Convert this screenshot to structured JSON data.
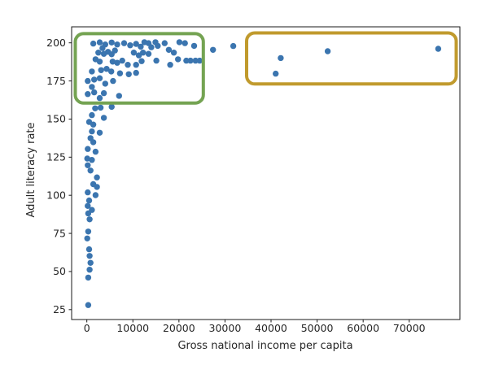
{
  "figure": {
    "background": "#ffffff",
    "frame_color": "#1a1a1a",
    "tick_label_color": "#262626"
  },
  "chart_data": {
    "type": "scatter",
    "title": "",
    "xlabel": "Gross national income per capita",
    "ylabel": "Adult literacy rate",
    "xlim": [
      -3300,
      81000
    ],
    "ylim": [
      18.5,
      210.5
    ],
    "xticks": [
      0,
      10000,
      20000,
      30000,
      40000,
      50000,
      60000,
      70000
    ],
    "yticks": [
      25,
      50,
      75,
      100,
      125,
      150,
      175,
      200
    ],
    "grid": false,
    "legend": null,
    "point_color": "#3b75af",
    "marker_radius": 3.7,
    "points": [
      [
        1400,
        199.5
      ],
      [
        2800,
        200.3
      ],
      [
        4000,
        198.9
      ],
      [
        5400,
        200.2
      ],
      [
        6600,
        198.9
      ],
      [
        8100,
        199.8
      ],
      [
        9400,
        198.4
      ],
      [
        10700,
        199.3
      ],
      [
        11700,
        197.5
      ],
      [
        12500,
        200.4
      ],
      [
        13400,
        199.8
      ],
      [
        14000,
        197.1
      ],
      [
        14900,
        200.4
      ],
      [
        15400,
        198.0
      ],
      [
        16900,
        199.8
      ],
      [
        20100,
        200.4
      ],
      [
        21300,
        199.8
      ],
      [
        23300,
        198.0
      ],
      [
        2500,
        193.6
      ],
      [
        3400,
        196.6
      ],
      [
        3700,
        192.8
      ],
      [
        4600,
        194.1
      ],
      [
        5400,
        192.5
      ],
      [
        6100,
        195.0
      ],
      [
        10200,
        193.6
      ],
      [
        11300,
        191.8
      ],
      [
        12200,
        193.6
      ],
      [
        13400,
        192.8
      ],
      [
        17800,
        195.4
      ],
      [
        18900,
        193.6
      ],
      [
        1900,
        189.2
      ],
      [
        2800,
        187.7
      ],
      [
        5600,
        187.7
      ],
      [
        6600,
        186.9
      ],
      [
        7700,
        188.3
      ],
      [
        8900,
        185.6
      ],
      [
        10700,
        185.6
      ],
      [
        11900,
        188.0
      ],
      [
        15100,
        188.3
      ],
      [
        18100,
        185.6
      ],
      [
        19800,
        189.2
      ],
      [
        21600,
        188.3
      ],
      [
        22500,
        188.3
      ],
      [
        23600,
        188.3
      ],
      [
        24500,
        188.3
      ],
      [
        1100,
        181.2
      ],
      [
        3100,
        182.1
      ],
      [
        4300,
        182.9
      ],
      [
        5300,
        181.2
      ],
      [
        7200,
        180.0
      ],
      [
        9100,
        179.4
      ],
      [
        10700,
        180.3
      ],
      [
        200,
        175.0
      ],
      [
        1600,
        175.9
      ],
      [
        2800,
        176.8
      ],
      [
        4000,
        173.2
      ],
      [
        5700,
        175.0
      ],
      [
        1100,
        171.1
      ],
      [
        200,
        166.4
      ],
      [
        1600,
        167.5
      ],
      [
        2800,
        163.8
      ],
      [
        3700,
        167.0
      ],
      [
        7000,
        165.2
      ],
      [
        27400,
        195.4
      ],
      [
        31800,
        197.9
      ],
      [
        41000,
        179.8
      ],
      [
        42100,
        190.0
      ],
      [
        52300,
        194.5
      ],
      [
        76300,
        196.1
      ],
      [
        1800,
        157.0
      ],
      [
        3000,
        157.5
      ],
      [
        5400,
        158.0
      ],
      [
        1100,
        152.6
      ],
      [
        3700,
        150.8
      ],
      [
        500,
        148.1
      ],
      [
        1400,
        146.4
      ],
      [
        1100,
        141.9
      ],
      [
        2800,
        141.0
      ],
      [
        800,
        137.5
      ],
      [
        1400,
        134.8
      ],
      [
        200,
        130.4
      ],
      [
        1900,
        128.6
      ],
      [
        100,
        124.1
      ],
      [
        1100,
        123.2
      ],
      [
        200,
        119.7
      ],
      [
        800,
        116.2
      ],
      [
        2200,
        111.7
      ],
      [
        1400,
        107.3
      ],
      [
        2200,
        105.5
      ],
      [
        200,
        101.9
      ],
      [
        1900,
        100.1
      ],
      [
        500,
        96.6
      ],
      [
        200,
        93.0
      ],
      [
        1100,
        90.4
      ],
      [
        300,
        88.1
      ],
      [
        600,
        84.2
      ],
      [
        300,
        76.2
      ],
      [
        100,
        71.7
      ],
      [
        500,
        64.6
      ],
      [
        600,
        60.2
      ],
      [
        800,
        55.7
      ],
      [
        600,
        51.2
      ],
      [
        300,
        46.0
      ],
      [
        300,
        28.0
      ]
    ],
    "annotations": [
      {
        "name": "green-highlight-box",
        "color": "#74a352",
        "x0": -2500,
        "x1": 25300,
        "y0": 160.5,
        "y1": 206.0,
        "stroke_width": 4,
        "corner_radius": 10
      },
      {
        "name": "gold-highlight-box",
        "color": "#c09a2d",
        "x0": 34700,
        "x1": 80200,
        "y0": 173.0,
        "y1": 206.5,
        "stroke_width": 4,
        "corner_radius": 10
      }
    ]
  }
}
